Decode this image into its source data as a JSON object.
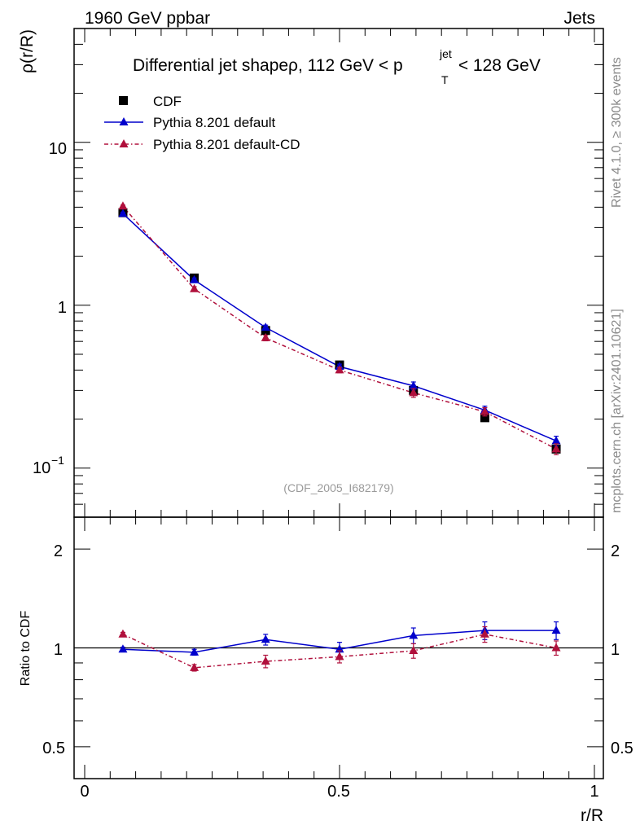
{
  "header": {
    "left": "1960 GeV ppbar",
    "right": "Jets"
  },
  "side_labels": {
    "rivet": "Rivet 4.1.0, ≥ 300k events",
    "mcplots": "mcplots.cern.ch [arXiv:2401.10621]"
  },
  "chart_data": [
    {
      "type": "scatter",
      "panel": "main",
      "title_pre": "Differential jet shapeρ, 112 GeV < p",
      "title_sup": "jet",
      "title_sub": "T",
      "title_post": " < 128 GeV",
      "xlabel": "r/R",
      "ylabel": "ρ(r/R)",
      "yscale": "log",
      "xlim": [
        0,
        1
      ],
      "ylim": [
        0.05,
        50
      ],
      "ytick_labels": [
        {
          "value": 10,
          "label": "10"
        },
        {
          "value": 1,
          "label": "1"
        }
      ],
      "ytick_label_low": {
        "value": 0.1,
        "base": "10",
        "exp": "−1"
      },
      "watermark": "(CDF_2005_I682179)",
      "legend_position": "top-left",
      "series": [
        {
          "name": "CDF",
          "style": "marker-square",
          "color": "#000000",
          "x": [
            0.075,
            0.215,
            0.355,
            0.5,
            0.645,
            0.785,
            0.925
          ],
          "values": [
            3.7,
            1.47,
            0.7,
            0.43,
            0.3,
            0.204,
            0.131
          ],
          "err": [
            0,
            0,
            0,
            0,
            0,
            0,
            0
          ]
        },
        {
          "name": "Pythia 8.201 default",
          "style": "solid",
          "color": "#0000cc",
          "x": [
            0.075,
            0.215,
            0.355,
            0.5,
            0.645,
            0.785,
            0.925
          ],
          "values": [
            3.65,
            1.43,
            0.73,
            0.42,
            0.32,
            0.227,
            0.147
          ],
          "err": [
            0.07,
            0.04,
            0.025,
            0.015,
            0.018,
            0.013,
            0.01
          ]
        },
        {
          "name": "Pythia 8.201 default-CD",
          "style": "dashdot",
          "color": "#b0103c",
          "x": [
            0.075,
            0.215,
            0.355,
            0.5,
            0.645,
            0.785,
            0.925
          ],
          "values": [
            4.05,
            1.26,
            0.63,
            0.4,
            0.29,
            0.222,
            0.131
          ],
          "err": [
            0.07,
            0.04,
            0.025,
            0.015,
            0.018,
            0.013,
            0.01
          ]
        }
      ]
    },
    {
      "type": "scatter",
      "panel": "ratio",
      "xlabel": "r/R",
      "ylabel": "Ratio to CDF",
      "yscale": "log",
      "xlim": [
        0,
        1
      ],
      "ylim": [
        0.4,
        2.5
      ],
      "ytick_labels": [
        {
          "value": 2,
          "label": "2"
        },
        {
          "value": 1,
          "label": "1"
        },
        {
          "value": 0.5,
          "label": "0.5"
        }
      ],
      "xtick_labels": [
        {
          "value": 0,
          "label": "0"
        },
        {
          "value": 0.5,
          "label": "0.5"
        },
        {
          "value": 1,
          "label": "1"
        }
      ],
      "series": [
        {
          "name": "Pythia 8.201 default",
          "color": "#0000cc",
          "style": "solid",
          "x": [
            0.075,
            0.215,
            0.355,
            0.5,
            0.645,
            0.785,
            0.925
          ],
          "values": [
            0.99,
            0.97,
            1.06,
            0.99,
            1.09,
            1.13,
            1.13
          ],
          "err": [
            0.015,
            0.02,
            0.04,
            0.05,
            0.06,
            0.07,
            0.07
          ],
          "band_to": 1.0
        },
        {
          "name": "Pythia 8.201 default-CD",
          "color": "#b0103c",
          "style": "dashdot",
          "x": [
            0.075,
            0.215,
            0.355,
            0.5,
            0.645,
            0.785,
            0.925
          ],
          "values": [
            1.1,
            0.87,
            0.91,
            0.94,
            0.98,
            1.1,
            1.0
          ],
          "err": [
            0.015,
            0.02,
            0.04,
            0.04,
            0.05,
            0.06,
            0.05
          ]
        }
      ]
    }
  ]
}
